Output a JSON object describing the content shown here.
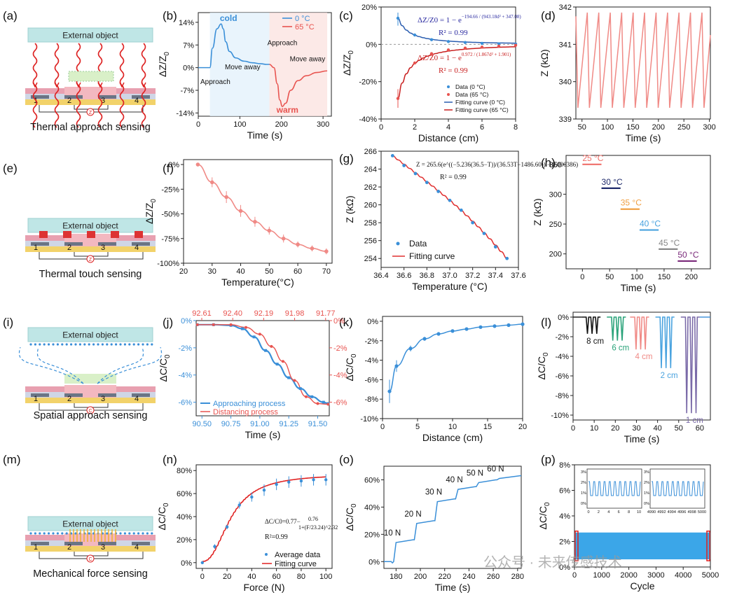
{
  "panel_labels": [
    "(a)",
    "(b)",
    "(c)",
    "(d)",
    "(e)",
    "(f)",
    "(g)",
    "(h)",
    "(i)",
    "(j)",
    "(k)",
    "(l)",
    "(m)",
    "(n)",
    "(o)",
    "(p)"
  ],
  "schematics": [
    {
      "caption": "Thermal approach sensing",
      "object": "External object",
      "electrodes": [
        "1",
        "2",
        "3",
        "4"
      ],
      "meter": "Z"
    },
    {
      "caption": "Thermal touch sensing",
      "object": "External object",
      "electrodes": [
        "1",
        "2",
        "3",
        "4"
      ],
      "meter": "Z"
    },
    {
      "caption": "Spatial approach sensing",
      "object": "External object",
      "electrodes": [
        "1",
        "2",
        "3",
        "4"
      ],
      "meter": "C"
    },
    {
      "caption": "Mechanical force sensing",
      "object": "External object",
      "electrodes": [
        "1",
        "2",
        "3",
        "4"
      ],
      "meter": "C"
    }
  ],
  "watermark": "公众号 · 未来传感技术",
  "colors": {
    "blue": "#3a8fd8",
    "red": "#e8534f",
    "pink": "#f08a86",
    "navy": "#1f2a6b",
    "dark_red": "#c81e1e"
  },
  "chart_data": [
    {
      "panel": "(b)",
      "type": "line",
      "xlabel": "Time (s)",
      "ylabel": "ΔZ/Z0",
      "ylabel_sub": "0",
      "xlim": [
        0,
        320
      ],
      "ylim": [
        -15,
        17
      ],
      "xticks": [
        0,
        100,
        200,
        300
      ],
      "yticks": [
        14,
        7,
        0,
        -7,
        -14
      ],
      "ytick_labels": [
        "14%",
        "7%",
        "0%",
        "-7%",
        "-14%"
      ],
      "series": [
        {
          "name": "0 °C",
          "x": [
            0,
            28,
            34,
            45,
            55,
            60,
            66,
            75,
            90,
            110,
            130,
            150,
            165,
            171
          ],
          "y": [
            0,
            0,
            6,
            12,
            13.5,
            12,
            8,
            5,
            3,
            2,
            1.5,
            1.2,
            1,
            1
          ]
        },
        {
          "name": "65 °C",
          "x": [
            171,
            182,
            190,
            196,
            202,
            210,
            222,
            240,
            260,
            285,
            310
          ],
          "y": [
            1,
            0,
            -5,
            -10,
            -12,
            -11,
            -7,
            -4,
            -2.5,
            -1.5,
            -1
          ]
        }
      ],
      "annotations": [
        "cold",
        "warm",
        "Approach",
        "Move away",
        "Approach",
        "Move away"
      ]
    },
    {
      "panel": "(c)",
      "type": "scatter",
      "xlabel": "Distance (cm)",
      "ylabel": "ΔZ/Z0",
      "ylabel_sub": "0",
      "xlim": [
        0,
        8
      ],
      "ylim": [
        -40,
        20
      ],
      "xticks": [
        0,
        2,
        4,
        6,
        8
      ],
      "yticks": [
        20,
        0,
        -20,
        -40
      ],
      "ytick_labels": [
        "20%",
        "0%",
        "-20%",
        "-40%"
      ],
      "series": [
        {
          "name": "Data (0 °C)",
          "x": [
            1,
            2,
            3,
            4,
            5,
            6,
            7,
            8
          ],
          "y": [
            14,
            5,
            2.5,
            1.5,
            1.0,
            0.5,
            0.3,
            0.2
          ]
        },
        {
          "name": "Data (65 °C)",
          "x": [
            1,
            2,
            3,
            4,
            5,
            6,
            7,
            8
          ],
          "y": [
            -29,
            -10,
            -5,
            -3,
            -2,
            -1.5,
            -1,
            -0.5
          ]
        }
      ],
      "fit_legend": [
        "Fitting curve (0 °C)",
        "Fitting curve (65 °C)"
      ],
      "equations": [
        {
          "lhs": "ΔZ/Z0",
          "rhs": "= 1 − e",
          "exp": "−194.66 / (943.18d² + 347.08)",
          "r2": "R² = 0.99"
        },
        {
          "lhs": "ΔZ/Z0",
          "rhs": "= 1 − e",
          "exp": "0.972 / (1.867d² + 1.901)",
          "r2": "R² = 0.99"
        }
      ]
    },
    {
      "panel": "(d)",
      "type": "line",
      "xlabel": "Time (s)",
      "ylabel": "Z (kΩ)",
      "xlim": [
        38,
        302
      ],
      "ylim": [
        339,
        342
      ],
      "xticks": [
        50,
        100,
        150,
        200,
        250,
        300
      ],
      "yticks": [
        339,
        340,
        341,
        342
      ],
      "series": [
        {
          "name": "",
          "period_s": 22.5,
          "min": 339.3,
          "max": 341.85,
          "start_s": 42
        }
      ]
    },
    {
      "panel": "(f)",
      "type": "line",
      "xlabel": "Temperature(°C)",
      "ylabel": "ΔZ/Z0",
      "ylabel_sub": "0",
      "xlim": [
        20,
        72
      ],
      "ylim": [
        -100,
        5
      ],
      "xticks": [
        20,
        30,
        40,
        50,
        60,
        70
      ],
      "yticks": [
        0,
        -25,
        -50,
        -75,
        -100
      ],
      "ytick_labels": [
        "0%",
        "-25%",
        "-50%",
        "-75%",
        "-100%"
      ],
      "series": [
        {
          "name": "",
          "x": [
            25,
            30,
            35,
            40,
            45,
            50,
            55,
            60,
            65,
            70
          ],
          "y": [
            0,
            -18,
            -33,
            -47,
            -58,
            -67,
            -75,
            -81,
            -85,
            -88
          ],
          "err": [
            0,
            5,
            6,
            6,
            5,
            4,
            4,
            3,
            3,
            3
          ]
        }
      ]
    },
    {
      "panel": "(g)",
      "type": "scatter",
      "xlabel": "Temperature (°C)",
      "ylabel": "Z (kΩ)",
      "xlim": [
        36.4,
        37.6
      ],
      "ylim": [
        253,
        266
      ],
      "xticks": [
        36.4,
        36.6,
        36.8,
        37.0,
        37.2,
        37.4,
        37.6
      ],
      "yticks": [
        254,
        256,
        258,
        260,
        262,
        264,
        266
      ],
      "series": [
        {
          "name": "Data",
          "x": [
            36.5,
            36.6,
            36.7,
            36.8,
            36.9,
            37.0,
            37.1,
            37.2,
            37.3,
            37.4,
            37.5
          ],
          "y": [
            265.5,
            264.4,
            263.5,
            262.5,
            261.5,
            260.5,
            259.4,
            258.0,
            256.8,
            255.3,
            254.0
          ]
        }
      ],
      "fit_legend": "Fitting curve",
      "equation": "Z = 265.6(e^((−5.236(36.5−T))/(36.53T−1486.60)) − 0.000386)",
      "r2": "R² = 0.99"
    },
    {
      "panel": "(h)",
      "type": "bar",
      "xlabel": "Time (s)",
      "ylabel": "Z (kΩ)",
      "xlim": [
        -30,
        235
      ],
      "ylim": [
        175,
        365
      ],
      "xticks": [
        0,
        50,
        100,
        150,
        200
      ],
      "yticks": [
        200,
        250,
        300,
        350
      ],
      "segments": [
        {
          "label": "25 °C",
          "x0": 0,
          "x1": 35,
          "y": 350,
          "color": "#ef6f6a"
        },
        {
          "label": "30 °C",
          "x0": 35,
          "x1": 70,
          "y": 310,
          "color": "#1f2a6b"
        },
        {
          "label": "35 °C",
          "x0": 70,
          "x1": 105,
          "y": 275,
          "color": "#f0a044"
        },
        {
          "label": "40 °C",
          "x0": 105,
          "x1": 140,
          "y": 240,
          "color": "#4aa3df"
        },
        {
          "label": "45 °C",
          "x0": 140,
          "x1": 175,
          "y": 208,
          "color": "#888888"
        },
        {
          "label": "50 °C",
          "x0": 175,
          "x1": 210,
          "y": 188,
          "color": "#7a2a7a"
        }
      ]
    },
    {
      "panel": "(j)",
      "type": "line",
      "xlabel": "Time (s)",
      "ylabel": "ΔC/C0",
      "ylabel_sub": "0",
      "xlim": [
        90.45,
        91.6
      ],
      "ylim": [
        -7,
        0
      ],
      "xticks": [
        90.5,
        90.75,
        91.0,
        91.25,
        91.5
      ],
      "yticks": [
        0,
        -2,
        -4,
        -6
      ],
      "ytick_labels": [
        "0%",
        "-2%",
        "-4%",
        "-6%"
      ],
      "top_axis": {
        "ticks": [
          92.61,
          92.4,
          92.19,
          91.98,
          91.77
        ],
        "labels": [
          "92.61",
          "92.40",
          "92.19",
          "91.98",
          "91.77"
        ]
      },
      "series": [
        {
          "name": "Approaching process",
          "x": [
            90.46,
            90.6,
            90.75,
            90.85,
            90.95,
            91.05,
            91.15,
            91.25,
            91.35,
            91.45,
            91.55,
            91.59
          ],
          "y": [
            -0.3,
            -0.3,
            -0.35,
            -0.6,
            -1.2,
            -2.2,
            -3.2,
            -4.2,
            -5.0,
            -5.6,
            -6.0,
            -6.1
          ]
        },
        {
          "name": "Distancing process",
          "x": [
            90.46,
            90.6,
            90.75,
            90.88,
            91.0,
            91.1,
            91.2,
            91.3,
            91.4,
            91.5,
            91.59
          ],
          "y": [
            -0.3,
            -0.3,
            -0.3,
            -0.5,
            -1.0,
            -1.9,
            -3.0,
            -4.4,
            -5.6,
            -6.1,
            -6.15
          ]
        }
      ]
    },
    {
      "panel": "(k)",
      "type": "line",
      "xlabel": "Distance (cm)",
      "ylabel": "ΔC/C0",
      "ylabel_sub": "0",
      "xlim": [
        0,
        20
      ],
      "ylim": [
        -10,
        0.5
      ],
      "xticks": [
        0,
        5,
        10,
        15,
        20
      ],
      "yticks": [
        0,
        -2,
        -4,
        -6,
        -8,
        -10
      ],
      "ytick_labels": [
        "0%",
        "-2%",
        "-4%",
        "-6%",
        "-8%",
        "-10%"
      ],
      "series": [
        {
          "name": "",
          "x": [
            1,
            2,
            4,
            6,
            8,
            10,
            12,
            14,
            16,
            18,
            20
          ],
          "y": [
            -7.2,
            -4.6,
            -2.8,
            -1.8,
            -1.3,
            -1.0,
            -0.8,
            -0.6,
            -0.5,
            -0.4,
            -0.3
          ],
          "err": [
            1.2,
            0.6,
            0.3,
            0.2,
            0.15,
            0.1,
            0.1,
            0.1,
            0.1,
            0.1,
            0.1
          ]
        }
      ]
    },
    {
      "panel": "(l)",
      "type": "line",
      "xlabel": "Time (s)",
      "ylabel": "ΔC/C0",
      "ylabel_sub": "0",
      "xlim": [
        0,
        65
      ],
      "ylim": [
        -10.5,
        0.5
      ],
      "xticks": [
        0,
        10,
        20,
        30,
        40,
        50,
        60
      ],
      "yticks": [
        0,
        -2,
        -4,
        -6,
        -8,
        -10
      ],
      "ytick_labels": [
        "0%",
        "-2%",
        "-4%",
        "-6%",
        "-8%",
        "-10%"
      ],
      "groups": [
        {
          "label": "8 cm",
          "t": 9,
          "depth": -1.7,
          "color": "#111111"
        },
        {
          "label": "6 cm",
          "t": 21,
          "depth": -2.4,
          "color": "#2aa37a"
        },
        {
          "label": "4 cm",
          "t": 32,
          "depth": -3.3,
          "color": "#f08a86"
        },
        {
          "label": "2 cm",
          "t": 44,
          "depth": -5.2,
          "color": "#4aa3df"
        },
        {
          "label": "1 cm",
          "t": 56,
          "depth": -9.8,
          "color": "#7a6aa8"
        }
      ]
    },
    {
      "panel": "(n)",
      "type": "scatter",
      "xlabel": "Force (N)",
      "ylabel": "ΔC/C0",
      "ylabel_sub": "0",
      "xlim": [
        -5,
        105
      ],
      "ylim": [
        -5,
        85
      ],
      "xticks": [
        0,
        20,
        40,
        60,
        80,
        100
      ],
      "yticks": [
        0,
        20,
        40,
        60,
        80
      ],
      "ytick_labels": [
        "0%",
        "20%",
        "40%",
        "60%",
        "80%"
      ],
      "series": [
        {
          "name": "Average data",
          "x": [
            0,
            10,
            20,
            30,
            40,
            50,
            60,
            70,
            80,
            90,
            100
          ],
          "y": [
            0,
            14,
            31,
            50,
            57,
            63,
            68,
            70,
            71,
            72,
            72
          ],
          "err": [
            0,
            2,
            2,
            3,
            4,
            5,
            5,
            5,
            5,
            5,
            5
          ]
        }
      ],
      "fit_legend": "Fitting curve",
      "equation": {
        "lhs": "ΔC/C0",
        "a": "=0.77−",
        "num": "0.76",
        "den": "1+(F/23.24)^2.32"
      },
      "r2": "R²=0.99"
    },
    {
      "panel": "(o)",
      "type": "line",
      "xlabel": "Time (s)",
      "ylabel": "ΔC/C0",
      "ylabel_sub": "0",
      "xlim": [
        170,
        283
      ],
      "ylim": [
        -5,
        70
      ],
      "xticks": [
        180,
        200,
        220,
        240,
        260,
        280
      ],
      "yticks": [
        0,
        20,
        40,
        60
      ],
      "ytick_labels": [
        "0%",
        "20%",
        "40%",
        "60%"
      ],
      "steps": [
        {
          "label": "10 N",
          "t0": 178,
          "t1": 195,
          "y": 16
        },
        {
          "label": "20 N",
          "t0": 195,
          "t1": 212,
          "y": 30
        },
        {
          "label": "30 N",
          "t0": 212,
          "t1": 229,
          "y": 46
        },
        {
          "label": "40 N",
          "t0": 229,
          "t1": 246,
          "y": 55
        },
        {
          "label": "50 N",
          "t0": 246,
          "t1": 263,
          "y": 60
        },
        {
          "label": "60 N",
          "t0": 263,
          "t1": 283,
          "y": 63
        }
      ]
    },
    {
      "panel": "(p)",
      "type": "area",
      "xlabel": "Cycle",
      "ylabel": "ΔC/C0",
      "ylabel_sub": "0",
      "xlim": [
        0,
        5000
      ],
      "ylim": [
        0,
        8
      ],
      "xticks": [
        0,
        1000,
        2000,
        3000,
        4000,
        5000
      ],
      "yticks": [
        0,
        2,
        4,
        6,
        8
      ],
      "ytick_labels": [
        "0%",
        "2%",
        "4%",
        "6%",
        "8%"
      ],
      "band": {
        "min": 0.6,
        "max": 2.7
      },
      "insets": [
        {
          "xticks": [
            0,
            2,
            4,
            6,
            8,
            10
          ],
          "yticks": [
            "3%",
            "2%",
            "1%",
            "0%"
          ]
        },
        {
          "xticks": [
            4990,
            4992,
            4994,
            4996,
            4998,
            5000
          ],
          "yticks": [
            "3%",
            "2%",
            "1%",
            "0%"
          ]
        }
      ]
    }
  ]
}
